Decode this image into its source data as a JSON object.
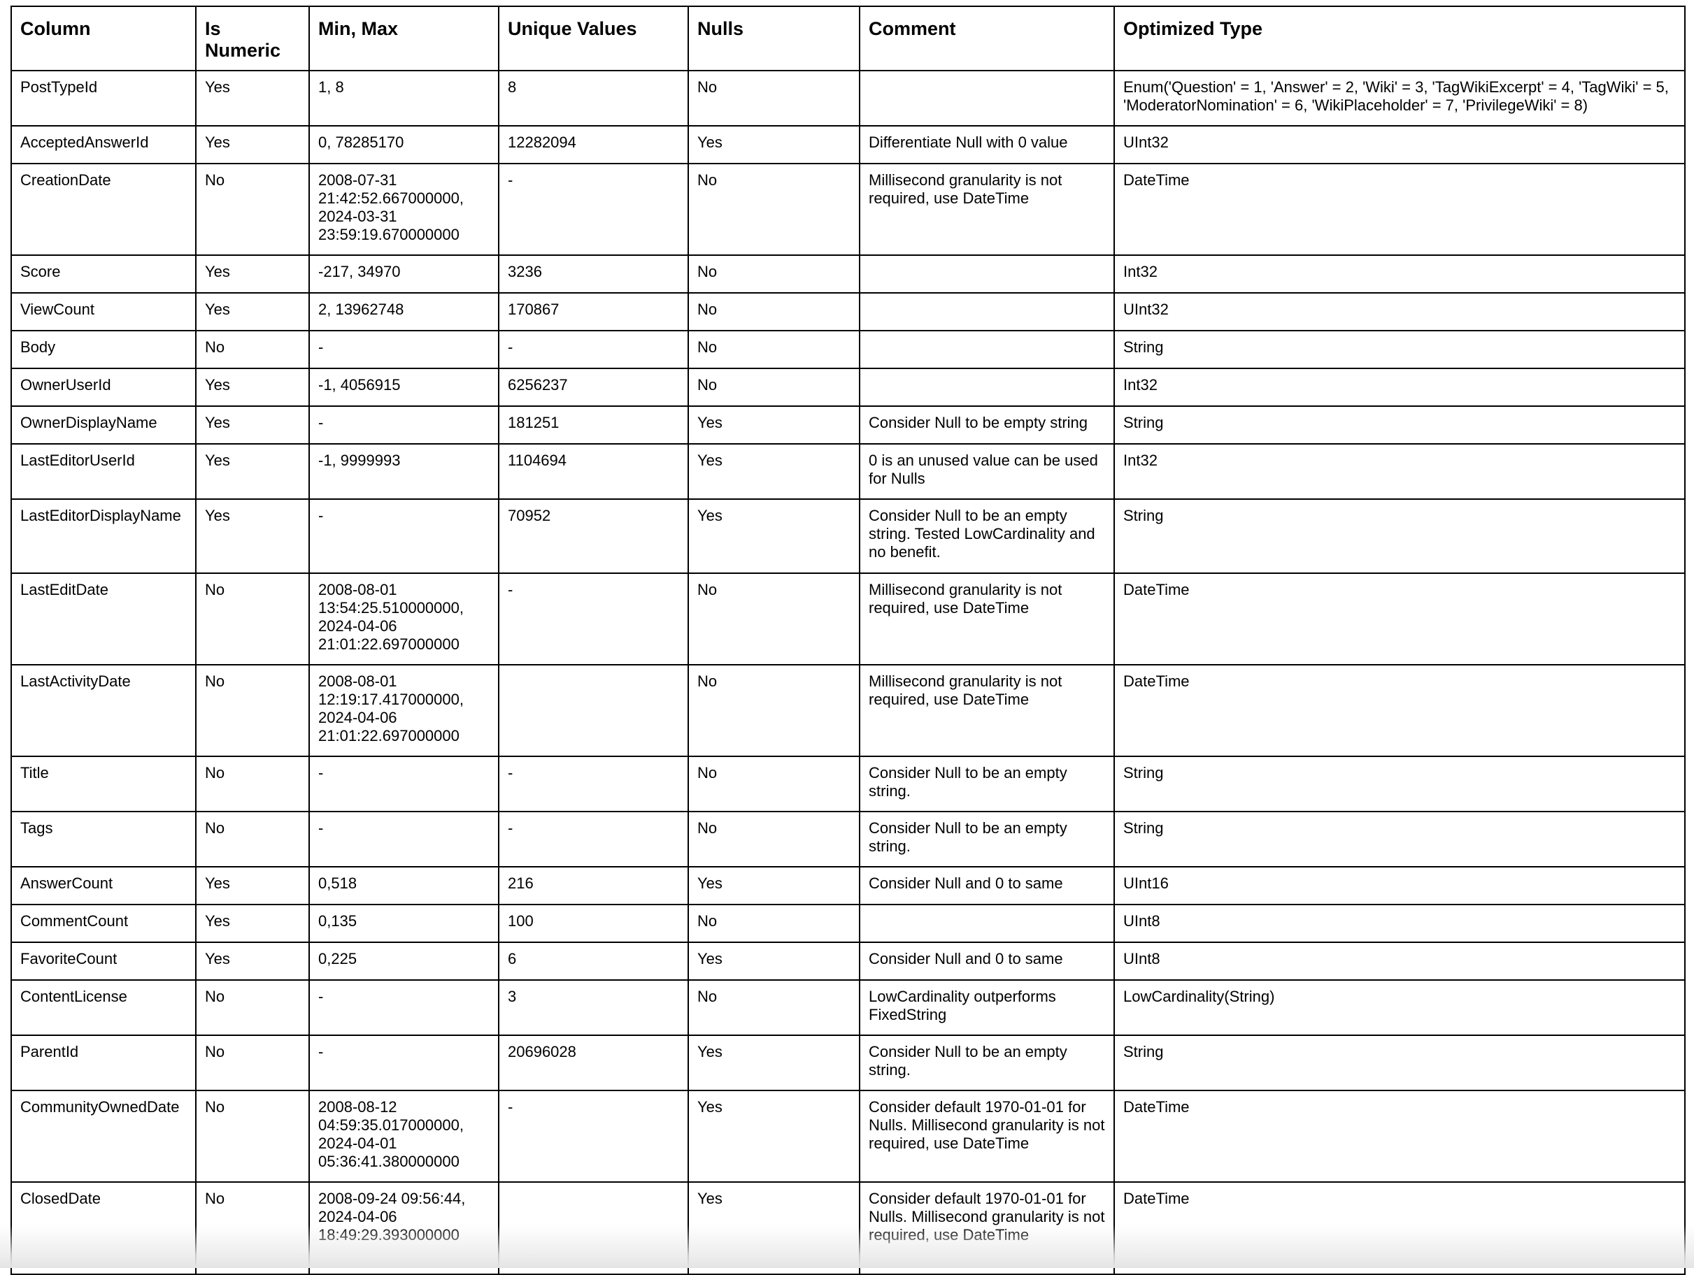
{
  "table": {
    "headers": [
      "Column",
      "Is Numeric",
      "Min, Max",
      "Unique Values",
      "Nulls",
      "Comment",
      "Optimized Type"
    ],
    "rows": [
      [
        "PostTypeId",
        "Yes",
        "1, 8",
        "8",
        "No",
        "",
        "Enum('Question' = 1, 'Answer' = 2, 'Wiki' = 3, 'TagWikiExcerpt' = 4, 'TagWiki' = 5, 'ModeratorNomination' = 6, 'WikiPlaceholder' = 7, 'PrivilegeWiki' = 8)"
      ],
      [
        "AcceptedAnswerId",
        "Yes",
        "0, 78285170",
        "12282094",
        "Yes",
        "Differentiate Null with 0 value",
        "UInt32"
      ],
      [
        "CreationDate",
        "No",
        "2008-07-31 21:42:52.667000000, 2024-03-31 23:59:19.670000000",
        "-",
        "No",
        "Millisecond granularity is not required, use DateTime",
        "DateTime"
      ],
      [
        "Score",
        "Yes",
        "-217, 34970",
        "3236",
        "No",
        "",
        "Int32"
      ],
      [
        "ViewCount",
        "Yes",
        "2, 13962748",
        "170867",
        "No",
        "",
        "UInt32"
      ],
      [
        "Body",
        "No",
        "-",
        "-",
        "No",
        "",
        "String"
      ],
      [
        "OwnerUserId",
        "Yes",
        "-1, 4056915",
        "6256237",
        "No",
        "",
        "Int32"
      ],
      [
        "OwnerDisplayName",
        "Yes",
        "-",
        "181251",
        "Yes",
        "Consider Null to be empty string",
        "String"
      ],
      [
        "LastEditorUserId",
        "Yes",
        "-1, 9999993",
        "1104694",
        "Yes",
        "0 is an unused value can be used for Nulls",
        "Int32"
      ],
      [
        "LastEditorDisplayName",
        "Yes",
        "-",
        "70952",
        "Yes",
        "Consider Null to be an empty string. Tested LowCardinality and no benefit.",
        "String"
      ],
      [
        "LastEditDate",
        "No",
        "2008-08-01 13:54:25.510000000, 2024-04-06 21:01:22.697000000",
        "-",
        "No",
        "Millisecond granularity is not required, use DateTime",
        "DateTime"
      ],
      [
        "LastActivityDate",
        "No",
        "2008-08-01 12:19:17.417000000, 2024-04-06 21:01:22.697000000",
        "",
        "No",
        "Millisecond granularity is not required, use DateTime",
        "DateTime"
      ],
      [
        "Title",
        "No",
        "-",
        "-",
        "No",
        "Consider Null to be an empty string.",
        "String"
      ],
      [
        "Tags",
        "No",
        "-",
        "-",
        "No",
        "Consider Null to be an empty string.",
        "String"
      ],
      [
        "AnswerCount",
        "Yes",
        "0,518",
        "216",
        "Yes",
        "Consider Null and 0 to same",
        "UInt16"
      ],
      [
        "CommentCount",
        "Yes",
        "0,135",
        "100",
        "No",
        "",
        "UInt8"
      ],
      [
        "FavoriteCount",
        "Yes",
        "0,225",
        "6",
        "Yes",
        "Consider Null and 0 to same",
        "UInt8"
      ],
      [
        "ContentLicense",
        "No",
        "-",
        "3",
        "No",
        "LowCardinality outperforms FixedString",
        "LowCardinality(String)"
      ],
      [
        "ParentId",
        "No",
        "-",
        "20696028",
        "Yes",
        "Consider Null to be an empty string.",
        "String"
      ],
      [
        "CommunityOwnedDate",
        "No",
        "2008-08-12 04:59:35.017000000, 2024-04-01 05:36:41.380000000",
        "-",
        "Yes",
        "Consider default 1970-01-01 for Nulls. Millisecond granularity is not required, use DateTime",
        "DateTime"
      ],
      [
        "ClosedDate",
        "No",
        "2008-09-24 09:56:44, 2024-04-06 18:49:29.393000000",
        "",
        "Yes",
        "Consider default 1970-01-01 for Nulls. Millisecond granularity is not required, use DateTime",
        "DateTime"
      ]
    ]
  }
}
